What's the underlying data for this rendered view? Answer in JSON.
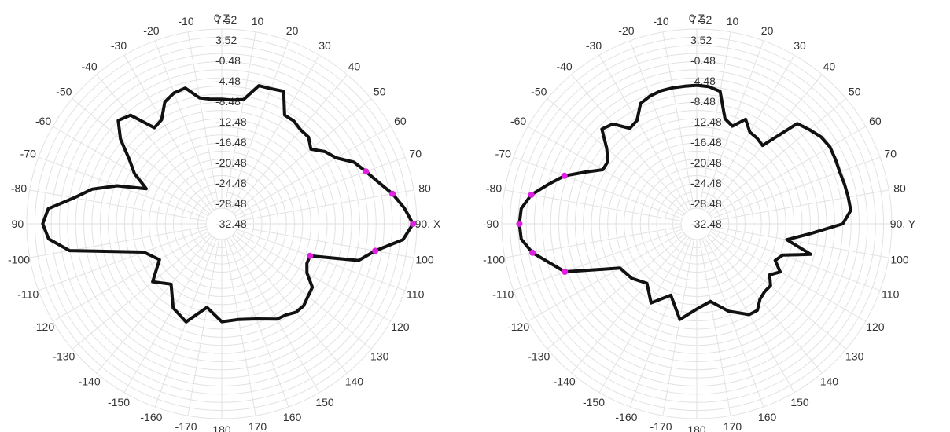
{
  "chart_data": [
    {
      "type": "polar-line",
      "title": "",
      "zero_direction_label": "Z",
      "ninety_direction_label": "X",
      "angle_ticks": [
        0,
        10,
        20,
        30,
        40,
        50,
        60,
        70,
        80,
        90,
        100,
        110,
        120,
        130,
        140,
        150,
        160,
        170,
        180,
        170,
        160,
        150,
        140,
        130,
        120,
        110,
        100,
        90,
        80,
        70,
        60,
        50,
        40,
        30,
        20,
        10
      ],
      "angle_tick_labels": [
        "0",
        "10",
        "20",
        "30",
        "40",
        "50",
        "60",
        "70",
        "80",
        "90",
        "100",
        "110",
        "120",
        "130",
        "140",
        "150",
        "160",
        "170",
        "180",
        "-170",
        "-160",
        "-150",
        "-140",
        "-130",
        "-120",
        "-110",
        "-100",
        "-90",
        "-80",
        "-70",
        "-60",
        "-50",
        "-40",
        "-30",
        "-20",
        "-10"
      ],
      "radial_ticks": [
        "7.52",
        "3.52",
        "-0.48",
        "-4.48",
        "-8.48",
        "-12.48",
        "-16.48",
        "-20.48",
        "-24.48",
        "-28.48",
        "-32.48"
      ],
      "r_range": [
        -36.48,
        7.52
      ],
      "series": [
        {
          "angle_deg": [
            -180,
            -170,
            -160,
            -150,
            -140,
            -130,
            -120,
            -110,
            -100,
            -95,
            -90,
            -85,
            -80,
            -75,
            -70,
            -65,
            -60,
            -55,
            -50,
            -45,
            -40,
            -35,
            -30,
            -25,
            -20,
            -15,
            -10,
            -5,
            0,
            5,
            10,
            15,
            20,
            25,
            30,
            35,
            40,
            45,
            50,
            55,
            60,
            65,
            70,
            75,
            80,
            85,
            90,
            95,
            100,
            105,
            110,
            115,
            120,
            125,
            130,
            135,
            140,
            145,
            150,
            160,
            170,
            180
          ],
          "values": [
            -16.3,
            -19.5,
            -14.7,
            -16.5,
            -21,
            -18.2,
            -22.7,
            -20,
            -2.4,
            2.3,
            3.6,
            2.4,
            -3.5,
            -7.4,
            -13,
            -19.9,
            -15.6,
            -12.6,
            -7.9,
            -4.4,
            -5.5,
            -11.5,
            -10.8,
            -7.3,
            -6.1,
            -5.8,
            -8.9,
            -9.6,
            -9.7,
            -9.8,
            -9.3,
            -5.2,
            -5,
            -4.4,
            -9.5,
            -9.5,
            -10.2,
            -10.2,
            -11.8,
            -9.4,
            -7.9,
            -4.5,
            -2.7,
            -0.6,
            2.2,
            4.6,
            6.6,
            4.3,
            -2.1,
            -5.6,
            -17.3,
            -17.3,
            -16.2,
            -13.2,
            -12.7,
            -11.9,
            -12,
            -13,
            -13.3,
            -15.5,
            -16.5,
            -16.3
          ]
        }
      ],
      "marker_angles_deg": [
        70,
        80,
        90,
        100,
        110
      ],
      "marker_color": "#e020e0",
      "line_color": "#111111",
      "grid_color": "#e2e2e2"
    },
    {
      "type": "polar-line",
      "title": "",
      "zero_direction_label": "Z",
      "ninety_direction_label": "Y",
      "angle_ticks": [
        0,
        10,
        20,
        30,
        40,
        50,
        60,
        70,
        80,
        90,
        100,
        110,
        120,
        130,
        140,
        150,
        160,
        170,
        180,
        170,
        160,
        150,
        140,
        130,
        120,
        110,
        100,
        90,
        80,
        70,
        60,
        50,
        40,
        30,
        20,
        10
      ],
      "angle_tick_labels": [
        "0",
        "10",
        "20",
        "30",
        "40",
        "50",
        "60",
        "70",
        "80",
        "90",
        "100",
        "110",
        "120",
        "130",
        "140",
        "150",
        "160",
        "170",
        "180",
        "-170",
        "-160",
        "-150",
        "-140",
        "-130",
        "-120",
        "-110",
        "-100",
        "-90",
        "-80",
        "-70",
        "-60",
        "-50",
        "-40",
        "-30",
        "-20",
        "-10"
      ],
      "radial_ticks": [
        "7.52",
        "3.52",
        "-0.48",
        "-4.48",
        "-8.48",
        "-12.48",
        "-16.48",
        "-20.48",
        "-24.48",
        "-28.48",
        "-32.48"
      ],
      "r_range": [
        -36.48,
        7.52
      ],
      "series": [
        {
          "angle_deg": [
            -180,
            -170,
            -160,
            -150,
            -140,
            -130,
            -120,
            -110,
            -100,
            -95,
            -90,
            -85,
            -80,
            -75,
            -70,
            -65,
            -60,
            -55,
            -50,
            -45,
            -40,
            -35,
            -30,
            -25,
            -20,
            -15,
            -10,
            -5,
            0,
            5,
            10,
            15,
            20,
            25,
            30,
            35,
            40,
            45,
            50,
            55,
            60,
            65,
            70,
            75,
            80,
            85,
            90,
            95,
            100,
            105,
            110,
            115,
            120,
            125,
            130,
            135,
            140,
            145,
            150,
            160,
            170,
            180
          ],
          "values": [
            -19.4,
            -16.5,
            -21.7,
            -17.9,
            -21.3,
            -19.5,
            -18.6,
            -5.9,
            0.6,
            2.9,
            3.2,
            2.9,
            0.9,
            -2.7,
            -5.8,
            -10.2,
            -13.7,
            -13.7,
            -11.5,
            -7.4,
            -8.3,
            -11.7,
            -11,
            -7.7,
            -6.9,
            -6.5,
            -6.4,
            -6.4,
            -6.3,
            -6.5,
            -7.3,
            -13.6,
            -14.8,
            -12,
            -14.3,
            -14.6,
            -15.2,
            -5.5,
            -4.3,
            -3.1,
            -2.6,
            -2.8,
            -3,
            -2.8,
            -2.6,
            -2.4,
            -4.5,
            -12.4,
            -17.9,
            -11.4,
            -17.9,
            -19.1,
            -16.7,
            -18.5,
            -16.7,
            -16.8,
            -16.2,
            -14.4,
            -14.6,
            -17.5,
            -21,
            -19.4
          ]
        }
      ],
      "marker_angles_deg": [
        -110,
        -100,
        -90,
        -80,
        -70
      ],
      "marker_color": "#e020e0",
      "line_color": "#111111",
      "grid_color": "#e2e2e2"
    }
  ]
}
